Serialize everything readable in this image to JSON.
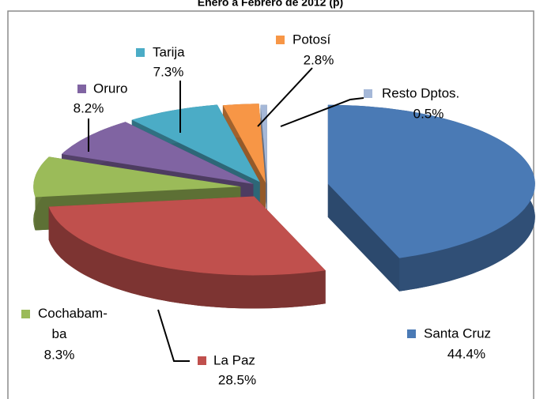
{
  "chart_data": {
    "type": "pie3d",
    "title": "Enero a Febrero de 2012 (p)",
    "categories": [
      "Santa Cruz",
      "La Paz",
      "Cochabam-ba",
      "Oruro",
      "Tarija",
      "Potosí",
      "Resto Dptos."
    ],
    "values": [
      44.4,
      28.5,
      8.3,
      8.2,
      7.3,
      2.8,
      0.5
    ],
    "value_labels": [
      "44.4%",
      "28.5%",
      "8.3%",
      "8.2%",
      "7.3%",
      "2.8%",
      "0.5%"
    ],
    "colors": [
      "#4a7ab5",
      "#c0504d",
      "#9bbb59",
      "#8064a2",
      "#4bacc6",
      "#f79646",
      "#a5b8d8"
    ]
  }
}
